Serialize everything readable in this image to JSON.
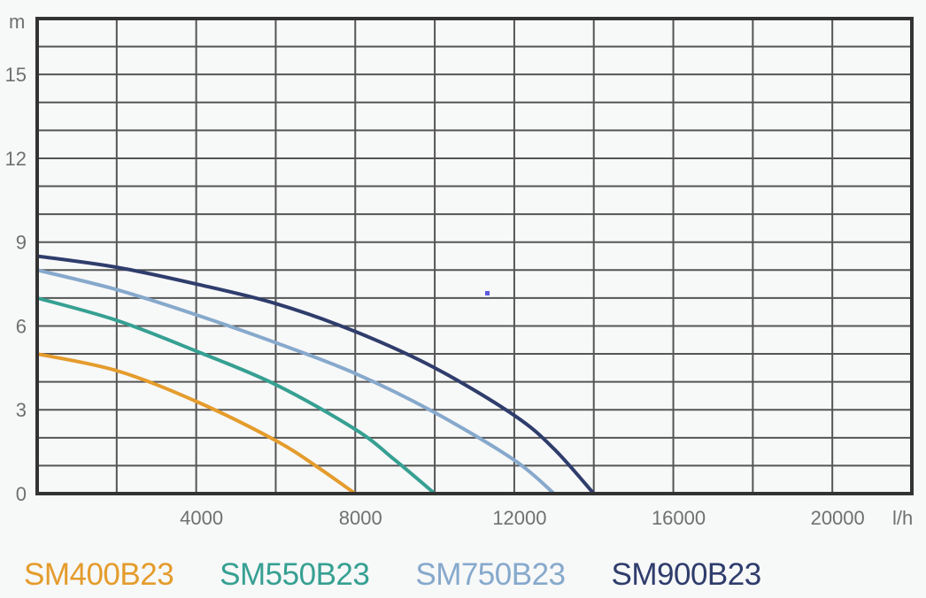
{
  "chart_data": {
    "type": "line",
    "title": "",
    "xlabel": "l/h",
    "ylabel": "m",
    "xlim": [
      0,
      22000
    ],
    "ylim": [
      0,
      17
    ],
    "x_ticks": [
      4000,
      8000,
      12000,
      16000,
      20000
    ],
    "y_ticks": [
      0,
      3,
      6,
      9,
      12,
      15
    ],
    "grid": true,
    "legend_position": "bottom",
    "series": [
      {
        "name": "SM400B23",
        "color": "#e49c2c",
        "points": [
          [
            0,
            5.0
          ],
          [
            2000,
            4.4
          ],
          [
            4000,
            3.3
          ],
          [
            6000,
            1.9
          ],
          [
            7000,
            1.0
          ],
          [
            8000,
            0
          ]
        ]
      },
      {
        "name": "SM550B23",
        "color": "#36a092",
        "points": [
          [
            0,
            7.0
          ],
          [
            2000,
            6.2
          ],
          [
            4000,
            5.1
          ],
          [
            6000,
            3.9
          ],
          [
            8000,
            2.3
          ],
          [
            9000,
            1.2
          ],
          [
            10000,
            0
          ]
        ]
      },
      {
        "name": "SM750B23",
        "color": "#86a9cc",
        "points": [
          [
            0,
            8.0
          ],
          [
            2000,
            7.3
          ],
          [
            4000,
            6.4
          ],
          [
            6000,
            5.4
          ],
          [
            8000,
            4.3
          ],
          [
            10000,
            2.9
          ],
          [
            12000,
            1.2
          ],
          [
            13000,
            0
          ]
        ]
      },
      {
        "name": "SM900B23",
        "color": "#2f3d6c",
        "points": [
          [
            0,
            8.5
          ],
          [
            2000,
            8.1
          ],
          [
            4000,
            7.5
          ],
          [
            6000,
            6.8
          ],
          [
            8000,
            5.8
          ],
          [
            10000,
            4.5
          ],
          [
            12000,
            2.8
          ],
          [
            13000,
            1.6
          ],
          [
            14000,
            0
          ]
        ]
      }
    ]
  }
}
